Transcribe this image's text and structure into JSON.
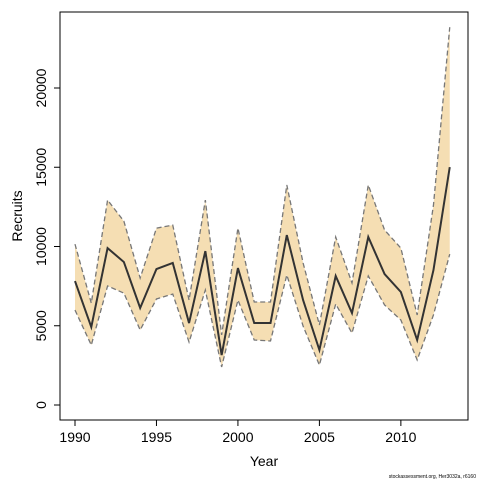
{
  "chart_data": {
    "type": "line",
    "xlabel": "Year",
    "ylabel": "Recruits",
    "footnote": "stockassessment.org, Her3032a, r6160",
    "x": [
      1990,
      1991,
      1992,
      1993,
      1994,
      1995,
      1996,
      1997,
      1998,
      1999,
      2000,
      2001,
      2002,
      2003,
      2004,
      2005,
      2006,
      2007,
      2008,
      2009,
      2010,
      2011,
      2012,
      2013
    ],
    "values": [
      7820,
      4920,
      9900,
      9020,
      6120,
      8580,
      8960,
      5170,
      9710,
      3150,
      8640,
      5170,
      5170,
      10720,
      6620,
      3470,
      8140,
      5800,
      10600,
      8260,
      7130,
      4100,
      8510,
      15010
    ],
    "upper": [
      10150,
      6430,
      12930,
      11600,
      8010,
      11160,
      11350,
      6620,
      12930,
      4420,
      11160,
      6500,
      6500,
      13880,
      8960,
      5050,
      10600,
      7700,
      13880,
      11040,
      9900,
      5680,
      12610,
      23840
    ],
    "lower": [
      5990,
      3780,
      7510,
      7060,
      4730,
      6690,
      7000,
      3970,
      7250,
      2400,
      6620,
      4100,
      4040,
      8200,
      4980,
      2520,
      6370,
      4540,
      8140,
      6310,
      5360,
      2840,
      5680,
      9520
    ],
    "color": "#333333",
    "band_color": "#f5deb3",
    "bound_color": "#777777",
    "xlim": [
      1989.08,
      2014.12
    ],
    "ylim": [
      -946,
      24795
    ],
    "xticks": [
      1990,
      1995,
      2000,
      2005,
      2010
    ],
    "yticks": [
      0,
      5000,
      10000,
      15000,
      20000
    ]
  }
}
